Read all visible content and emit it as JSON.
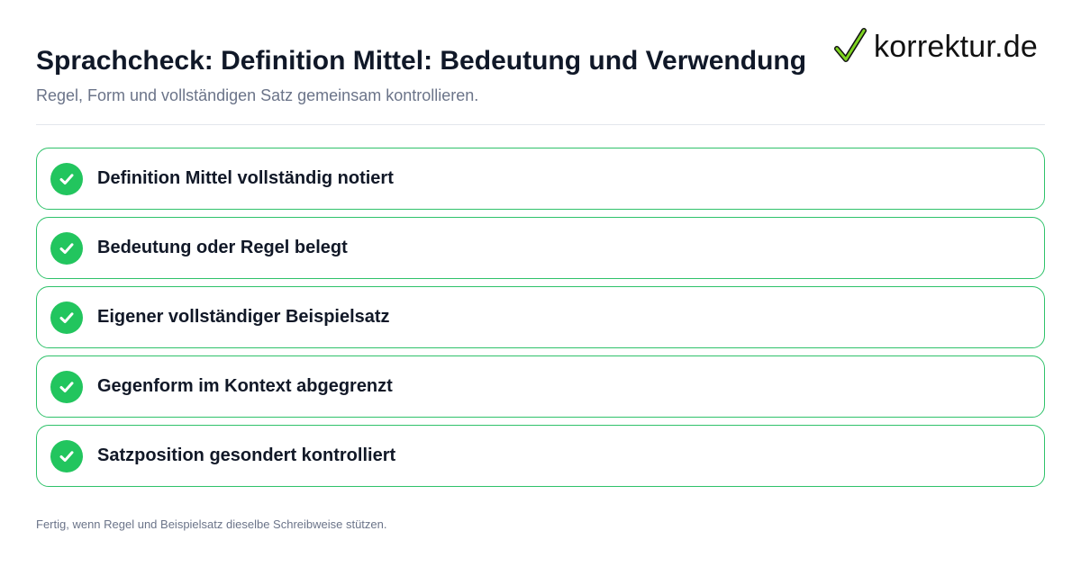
{
  "header": {
    "title": "Sprachcheck: Definition Mittel: Bedeutung und Verwendung",
    "subtitle": "Regel, Form und vollständigen Satz gemeinsam kontrollieren."
  },
  "logo": {
    "text": "korrektur.de",
    "icon": "checkmark-icon"
  },
  "checklist": {
    "items": [
      {
        "label": "Definition Mittel vollständig notiert",
        "checked": true
      },
      {
        "label": "Bedeutung oder Regel belegt",
        "checked": true
      },
      {
        "label": "Eigener vollständiger Beispielsatz",
        "checked": true
      },
      {
        "label": "Gegenform im Kontext abgegrenzt",
        "checked": true
      },
      {
        "label": "Satzposition gesondert kontrolliert",
        "checked": true
      }
    ]
  },
  "footer": {
    "text": "Fertig, wenn Regel und Beispielsatz dieselbe Schreibweise stützen."
  },
  "colors": {
    "accent_green": "#22c55e",
    "border_green": "#2fc26a",
    "title_text": "#101828",
    "muted_text": "#6b7489"
  }
}
